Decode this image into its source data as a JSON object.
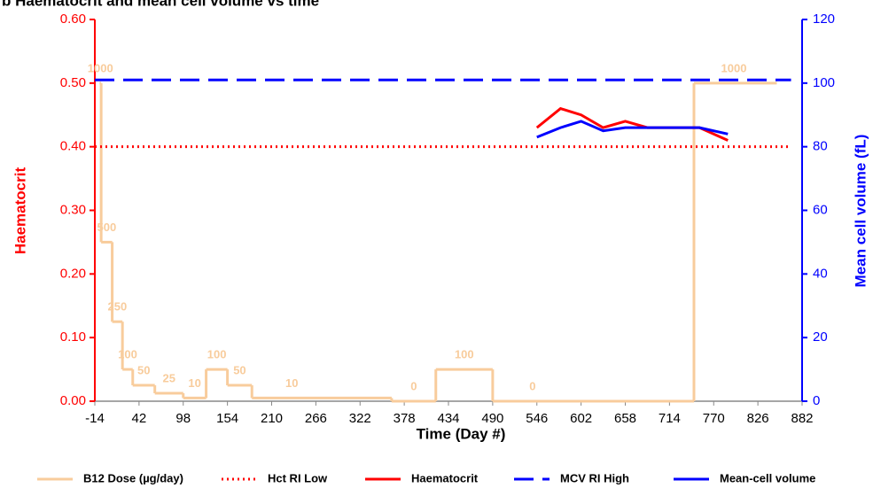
{
  "chart_data": {
    "type": "line",
    "title": "b Haematocrit and mean cell volume vs time",
    "x_label": "Time (Day #)",
    "y_label": "Haematocrit",
    "y2_label": "Mean cell volume (fL)",
    "xlim": [
      -14,
      882
    ],
    "xticks": [
      -14,
      42,
      98,
      154,
      210,
      266,
      322,
      378,
      434,
      490,
      546,
      602,
      658,
      714,
      770,
      826,
      882
    ],
    "ylim": [
      0,
      0.6
    ],
    "yticks": [
      {
        "value": 0,
        "label": "0.00"
      },
      {
        "value": 0.1,
        "label": "0.10"
      },
      {
        "value": 0.2,
        "label": "0.20"
      },
      {
        "value": 0.3,
        "label": "0.30"
      },
      {
        "value": 0.4,
        "label": "0.40"
      },
      {
        "value": 0.5,
        "label": "0.50"
      },
      {
        "value": 0.6,
        "label": "0.60"
      }
    ],
    "y2lim": [
      0,
      120
    ],
    "y2ticks": [
      0,
      20,
      40,
      60,
      80,
      100,
      120
    ],
    "y3lim": [
      0,
      1200
    ],
    "y_color": "#ff0000",
    "y2_color": "#0000ff",
    "grid": false,
    "legend": "bottom",
    "series": [
      {
        "name": "B12 Dose (µg/day)",
        "color": "#f8cc9c",
        "axis": "y3",
        "step": true,
        "dash": "solid",
        "x": [
          -8,
          -6,
          8,
          21,
          34,
          62,
          98,
          127,
          154,
          185,
          362,
          418,
          490,
          745,
          850
        ],
        "values": [
          1000,
          500,
          250,
          100,
          50,
          25,
          10,
          100,
          50,
          10,
          0,
          100,
          0,
          1000,
          1000
        ]
      },
      {
        "name": "Hct RI Low",
        "color": "#ff0000",
        "axis": "y",
        "dash": "dotted",
        "x": [
          -14,
          868
        ],
        "values": [
          0.4,
          0.4
        ]
      },
      {
        "name": "Haematocrit",
        "color": "#ff0000",
        "axis": "y",
        "dash": "solid",
        "x": [
          546,
          576,
          602,
          630,
          658,
          686,
          714,
          752,
          788
        ],
        "values": [
          0.43,
          0.46,
          0.45,
          0.43,
          0.44,
          0.43,
          0.43,
          0.43,
          0.41
        ]
      },
      {
        "name": "MCV RI High",
        "color": "#0000ff",
        "axis": "y2",
        "dash": "dashed",
        "x": [
          -14,
          868
        ],
        "values": [
          101,
          101
        ]
      },
      {
        "name": "Mean-cell volume",
        "color": "#0000ff",
        "axis": "y2",
        "dash": "solid",
        "x": [
          546,
          576,
          602,
          630,
          658,
          686,
          714,
          752,
          788
        ],
        "values": [
          83,
          86,
          88,
          85,
          86,
          86,
          86,
          86,
          84
        ]
      }
    ]
  }
}
